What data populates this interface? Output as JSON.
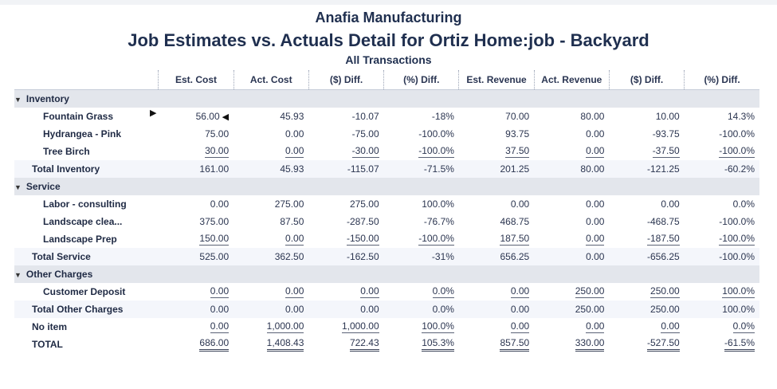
{
  "report": {
    "company": "Anafia Manufacturing",
    "title": "Job Estimates vs. Actuals Detail for Ortiz Home:job - Backyard",
    "subtitle": "All Transactions"
  },
  "columns": [
    "Est. Cost",
    "Act. Cost",
    "($) Diff.",
    "(%) Diff.",
    "Est. Revenue",
    "Act. Revenue",
    "($) Diff.",
    "(%) Diff."
  ],
  "sections": {
    "inventory": {
      "label": "Inventory",
      "items": [
        {
          "name": "Fountain Grass",
          "v": [
            "56.00",
            "45.93",
            "-10.07",
            "-18%",
            "70.00",
            "80.00",
            "10.00",
            "14.3%"
          ]
        },
        {
          "name": "Hydrangea - Pink",
          "v": [
            "75.00",
            "0.00",
            "-75.00",
            "-100.0%",
            "93.75",
            "0.00",
            "-93.75",
            "-100.0%"
          ]
        },
        {
          "name": "Tree Birch",
          "v": [
            "30.00",
            "0.00",
            "-30.00",
            "-100.0%",
            "37.50",
            "0.00",
            "-37.50",
            "-100.0%"
          ]
        }
      ],
      "total": {
        "name": "Total Inventory",
        "v": [
          "161.00",
          "45.93",
          "-115.07",
          "-71.5%",
          "201.25",
          "80.00",
          "-121.25",
          "-60.2%"
        ]
      }
    },
    "service": {
      "label": "Service",
      "items": [
        {
          "name": "Labor - consulting",
          "v": [
            "0.00",
            "275.00",
            "275.00",
            "100.0%",
            "0.00",
            "0.00",
            "0.00",
            "0.0%"
          ]
        },
        {
          "name": "Landscape clea...",
          "v": [
            "375.00",
            "87.50",
            "-287.50",
            "-76.7%",
            "468.75",
            "0.00",
            "-468.75",
            "-100.0%"
          ]
        },
        {
          "name": "Landscape Prep",
          "v": [
            "150.00",
            "0.00",
            "-150.00",
            "-100.0%",
            "187.50",
            "0.00",
            "-187.50",
            "-100.0%"
          ]
        }
      ],
      "total": {
        "name": "Total Service",
        "v": [
          "525.00",
          "362.50",
          "-162.50",
          "-31%",
          "656.25",
          "0.00",
          "-656.25",
          "-100.0%"
        ]
      }
    },
    "other": {
      "label": "Other Charges",
      "items": [
        {
          "name": "Customer Deposit",
          "v": [
            "0.00",
            "0.00",
            "0.00",
            "0.0%",
            "0.00",
            "250.00",
            "250.00",
            "100.0%"
          ]
        }
      ],
      "total": {
        "name": "Total Other Charges",
        "v": [
          "0.00",
          "0.00",
          "0.00",
          "0.0%",
          "0.00",
          "250.00",
          "250.00",
          "100.0%"
        ]
      }
    }
  },
  "no_item": {
    "name": "No item",
    "v": [
      "0.00",
      "1,000.00",
      "1,000.00",
      "100.0%",
      "0.00",
      "0.00",
      "0.00",
      "0.0%"
    ]
  },
  "grand_total": {
    "name": "TOTAL",
    "v": [
      "686.00",
      "1,408.43",
      "722.43",
      "105.3%",
      "857.50",
      "330.00",
      "-527.50",
      "-61.5%"
    ]
  },
  "icons": {
    "collapse": "triangle-down-icon",
    "row_marker": "triangle-right-icon",
    "cell_marker": "triangle-left-icon"
  }
}
